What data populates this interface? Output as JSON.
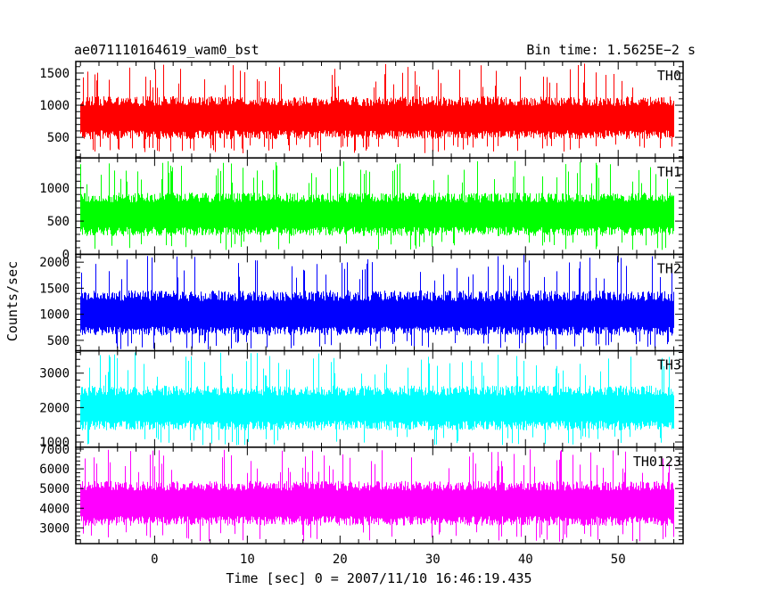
{
  "header": {
    "title": "ae071110164619_wam0_bst",
    "bin_time": "Bin time: 1.5625E−2 s"
  },
  "chart_data": {
    "type": "line",
    "title": "ae071110164619_wam0_bst",
    "subtitle": "Bin time: 1.5625E−2 s",
    "xlabel": "Time [sec] 0 = 2007/11/10 16:46:19.435",
    "ylabel": "Counts/sec",
    "xlim": [
      -8.5,
      57
    ],
    "x_ticks": [
      0,
      10,
      20,
      30,
      40,
      50
    ],
    "data_x_range": [
      -8,
      56
    ],
    "bin_time_s": 0.015625,
    "grid": false,
    "panels": [
      {
        "name": "TH0",
        "color": "#ff0000",
        "ylim": [
          180,
          1680
        ],
        "y_ticks": [
          500,
          1000,
          1500
        ],
        "mean": 800,
        "envelope_low": 250,
        "envelope_high": 1650
      },
      {
        "name": "TH1",
        "color": "#00ff00",
        "ylim": [
          0,
          1450
        ],
        "y_ticks": [
          0,
          500,
          1000
        ],
        "mean": 600,
        "envelope_low": 60,
        "envelope_high": 1420
      },
      {
        "name": "TH2",
        "color": "#0000ff",
        "ylim": [
          300,
          2150
        ],
        "y_ticks": [
          500,
          1000,
          1500,
          2000
        ],
        "mean": 1000,
        "envelope_low": 320,
        "envelope_high": 2150
      },
      {
        "name": "TH3",
        "color": "#00ffff",
        "ylim": [
          850,
          3650
        ],
        "y_ticks": [
          1000,
          2000,
          3000
        ],
        "mean": 2000,
        "envelope_low": 900,
        "envelope_high": 3600
      },
      {
        "name": "TH0123",
        "color": "#ff00ff",
        "ylim": [
          2200,
          7100
        ],
        "y_ticks": [
          3000,
          4000,
          5000,
          6000,
          7000
        ],
        "mean": 4300,
        "envelope_low": 2300,
        "envelope_high": 7000
      }
    ]
  }
}
